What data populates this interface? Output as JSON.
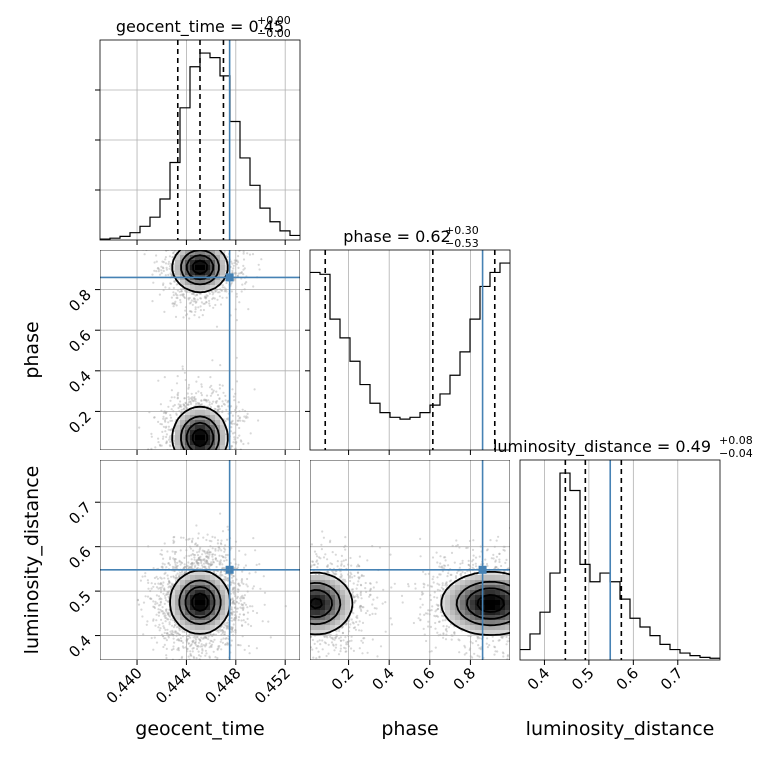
{
  "chart_data": {
    "type": "corner",
    "parameters": [
      "geocent_time",
      "phase",
      "luminosity_distance"
    ],
    "axis_labels": {
      "geocent_time": "geocent_time",
      "phase": "phase",
      "luminosity_distance": "luminosity_distance"
    },
    "ranges": {
      "geocent_time": [
        0.437,
        0.4532
      ],
      "phase": [
        0.01,
        0.995
      ],
      "luminosity_distance": [
        0.345,
        0.795
      ]
    },
    "ticks": {
      "geocent_time": [
        0.44,
        0.444,
        0.448,
        0.452
      ],
      "phase": [
        0.2,
        0.4,
        0.6,
        0.8
      ],
      "luminosity_distance": [
        0.4,
        0.5,
        0.6,
        0.7
      ]
    },
    "tick_labels": {
      "geocent_time": [
        "0.440",
        "0.444",
        "0.448",
        "0.452"
      ],
      "phase": [
        "0.2",
        "0.4",
        "0.6",
        "0.8"
      ],
      "phase_y": [
        "0.2",
        "0.4",
        "0.6",
        "0.8"
      ],
      "luminosity_distance": [
        "0.4",
        "0.5",
        "0.6",
        "0.7"
      ],
      "luminosity_distance_y": [
        "0.4",
        "0.5",
        "0.6",
        "0.7"
      ]
    },
    "truths": {
      "geocent_time": 0.4475,
      "phase": 0.86,
      "luminosity_distance": 0.548
    },
    "truth_color": "#4682b4",
    "titles": {
      "geocent_time": {
        "label": "geocent_time",
        "median": "0.45",
        "plus": "+0.00",
        "minus": "−0.00"
      },
      "phase": {
        "label": "phase",
        "median": "0.62",
        "plus": "+0.30",
        "minus": "−0.53"
      },
      "luminosity_distance": {
        "label": "luminosity_distance",
        "median": "0.49",
        "plus": "+0.08",
        "minus": "−0.04"
      }
    },
    "quantiles": {
      "geocent_time": [
        0.4433,
        0.4451,
        0.447
      ],
      "phase": [
        0.085,
        0.615,
        0.92
      ],
      "luminosity_distance": [
        0.447,
        0.492,
        0.573
      ]
    },
    "histograms": {
      "geocent_time": {
        "edges_start": 0.437,
        "edges_end": 0.4532,
        "counts": [
          1,
          2,
          4,
          8,
          15,
          25,
          45,
          85,
          145,
          190,
          205,
          200,
          180,
          130,
          90,
          60,
          35,
          20,
          10,
          5
        ]
      },
      "phase": {
        "edges_start": 0.01,
        "edges_end": 0.995,
        "counts": [
          190,
          188,
          140,
          120,
          95,
          70,
          50,
          40,
          35,
          33,
          35,
          40,
          48,
          60,
          80,
          105,
          140,
          175,
          190,
          200
        ]
      },
      "luminosity_distance": {
        "edges_start": 0.345,
        "edges_end": 0.795,
        "counts": [
          12,
          30,
          55,
          100,
          215,
          195,
          110,
          90,
          100,
          90,
          70,
          48,
          38,
          28,
          18,
          12,
          8,
          5,
          3,
          2
        ]
      }
    },
    "modes_2d": {
      "geocent_time__phase": [
        {
          "x": 0.4451,
          "y": 0.07,
          "sx": 0.0011,
          "sy": 0.075,
          "w": 1.0
        },
        {
          "x": 0.4451,
          "y": 0.91,
          "sx": 0.0011,
          "sy": 0.06,
          "w": 1.0
        }
      ],
      "geocent_time__luminosity_distance": [
        {
          "x": 0.4451,
          "y": 0.475,
          "sx": 0.0012,
          "sy": 0.035,
          "w": 1.0
        }
      ],
      "phase__luminosity_distance": [
        {
          "x": 0.04,
          "y": 0.472,
          "sx": 0.09,
          "sy": 0.035,
          "w": 1.0
        },
        {
          "x": 0.9,
          "y": 0.472,
          "sx": 0.12,
          "sy": 0.035,
          "w": 1.1
        }
      ]
    },
    "grid": true
  }
}
